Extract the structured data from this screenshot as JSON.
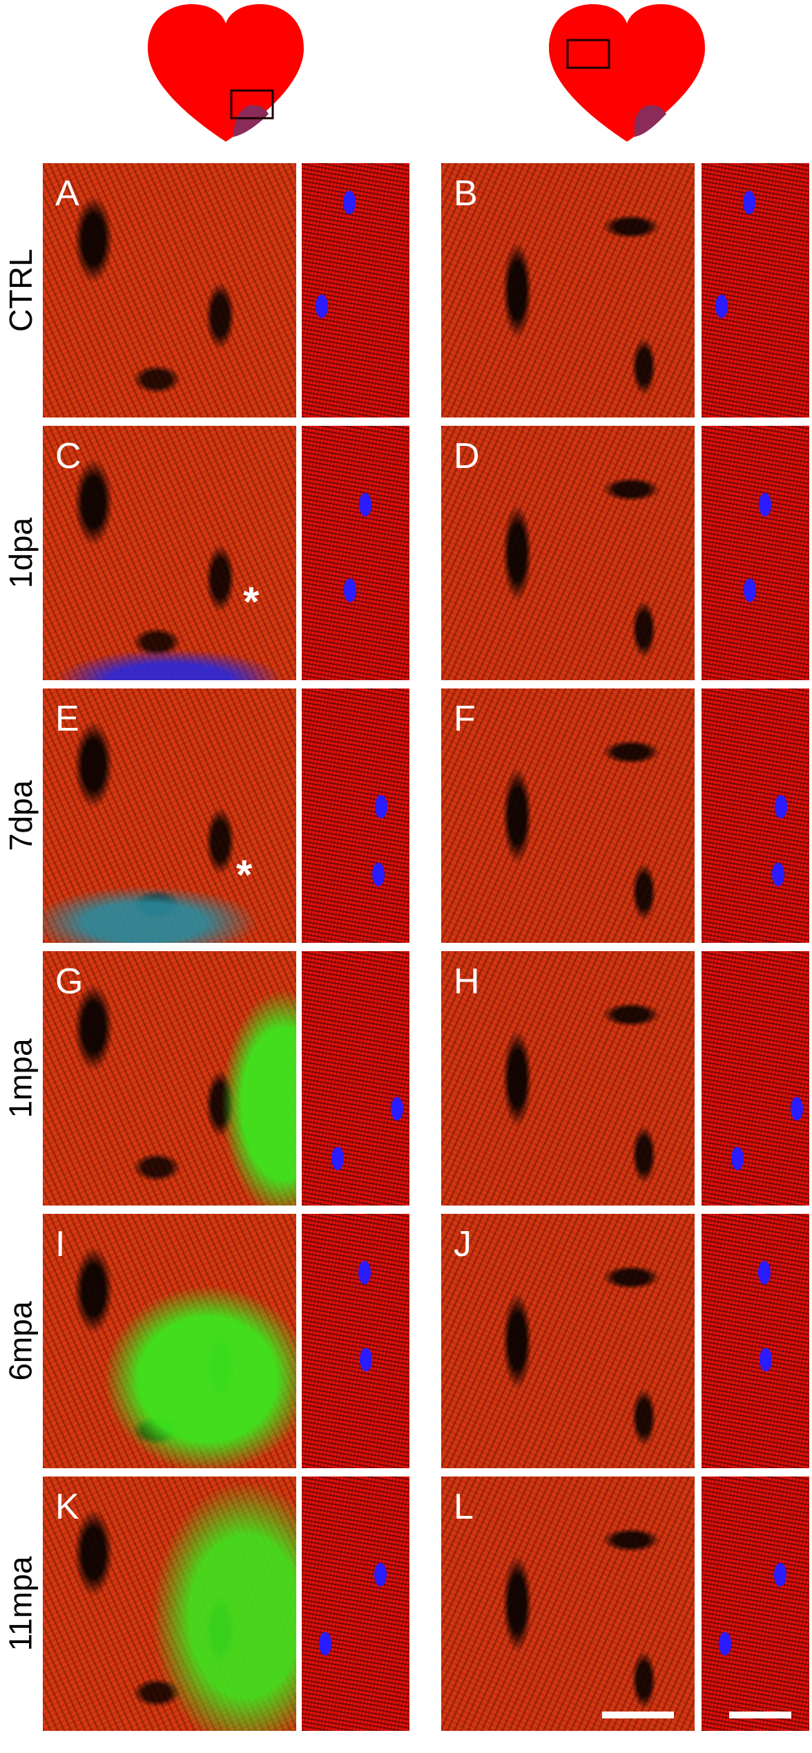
{
  "colors": {
    "heart": "#ff0000",
    "injury": "#8b2b5a",
    "roi_box": "#1a0000",
    "actinin": "#e0100a",
    "collagen_green": "#30e020",
    "dapi": "#2a1cff"
  },
  "schematics": [
    {
      "region": "injury-border",
      "icon": "heart-schematic-icon"
    },
    {
      "region": "remote",
      "icon": "heart-schematic-icon"
    }
  ],
  "rows": [
    {
      "label": "CTRL",
      "left": {
        "letter": "A"
      },
      "right": {
        "letter": "B"
      }
    },
    {
      "label": "1dpa",
      "left": {
        "letter": "C",
        "asterisk": "*"
      },
      "right": {
        "letter": "D"
      }
    },
    {
      "label": "7dpa",
      "left": {
        "letter": "E",
        "asterisk": "*"
      },
      "right": {
        "letter": "F"
      }
    },
    {
      "label": "1mpa",
      "left": {
        "letter": "G"
      },
      "right": {
        "letter": "H"
      }
    },
    {
      "label": "6mpa",
      "left": {
        "letter": "I"
      },
      "right": {
        "letter": "J"
      }
    },
    {
      "label": "11mpa",
      "left": {
        "letter": "K"
      },
      "right": {
        "letter": "L"
      }
    }
  ]
}
